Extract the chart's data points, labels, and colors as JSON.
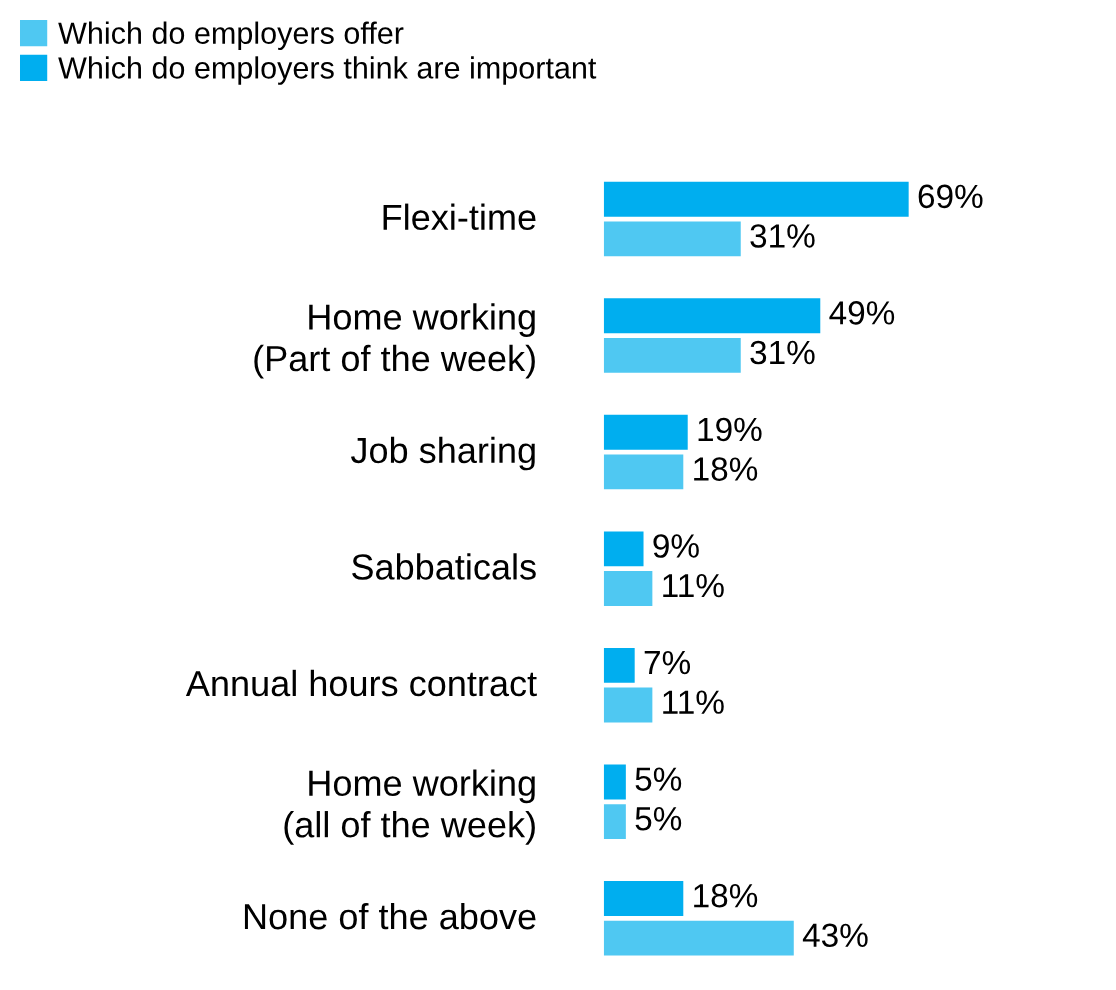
{
  "chart_data": {
    "type": "bar",
    "orientation": "horizontal",
    "legend": "top left",
    "categories": [
      "Flexi-time",
      "Home working\n(Part of the week)",
      "Job sharing",
      "Sabbaticals",
      "Annual hours contract",
      "Home working\n(all of the week)",
      "None of the above"
    ],
    "series": [
      {
        "name": "Which do employers offer",
        "color": "#4fc8f2",
        "values": [
          31,
          31,
          18,
          11,
          11,
          5,
          43
        ],
        "value_labels": [
          "31%",
          "31%",
          "18%",
          "11%",
          "11%",
          "5%",
          "43%"
        ]
      },
      {
        "name": "Which do employers think are important",
        "color": "#00aeef",
        "values": [
          69,
          49,
          19,
          9,
          7,
          5,
          18
        ],
        "value_labels": [
          "69%",
          "49%",
          "19%",
          "9%",
          "7%",
          "5%",
          "18%"
        ]
      }
    ]
  }
}
